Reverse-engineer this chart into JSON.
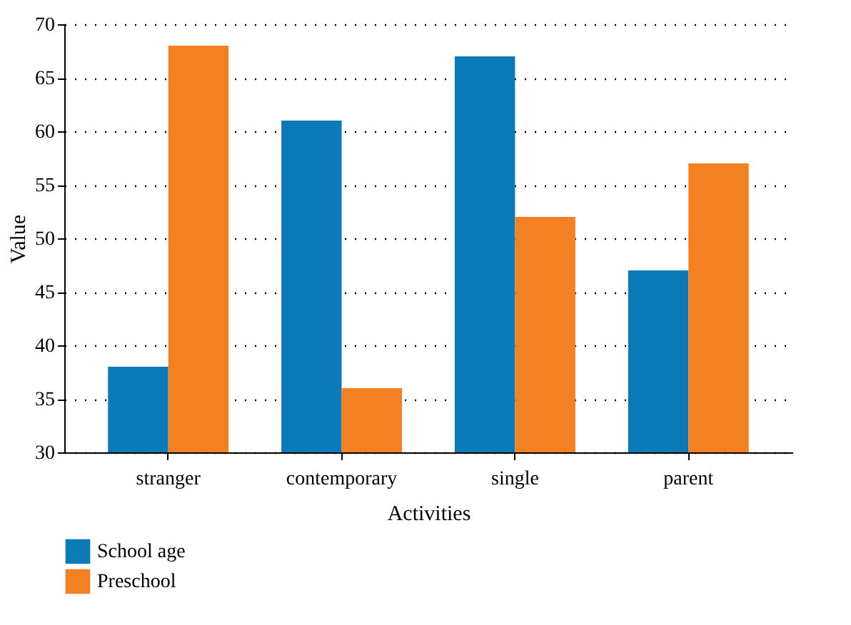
{
  "chart_data": {
    "type": "bar",
    "xlabel": "Activities",
    "ylabel": "Value",
    "categories": [
      "stranger",
      "contemporary",
      "single",
      "parent"
    ],
    "series": [
      {
        "name": "School age",
        "color": "#0a7bb8",
        "values": [
          38,
          61,
          67,
          47
        ]
      },
      {
        "name": "Preschool",
        "color": "#f38021",
        "values": [
          68,
          36,
          52,
          57
        ]
      }
    ],
    "ylim": [
      30,
      70
    ],
    "yticks": [
      30,
      35,
      40,
      45,
      50,
      55,
      60,
      65,
      70
    ],
    "grid": "y",
    "legend": "bottom left"
  }
}
